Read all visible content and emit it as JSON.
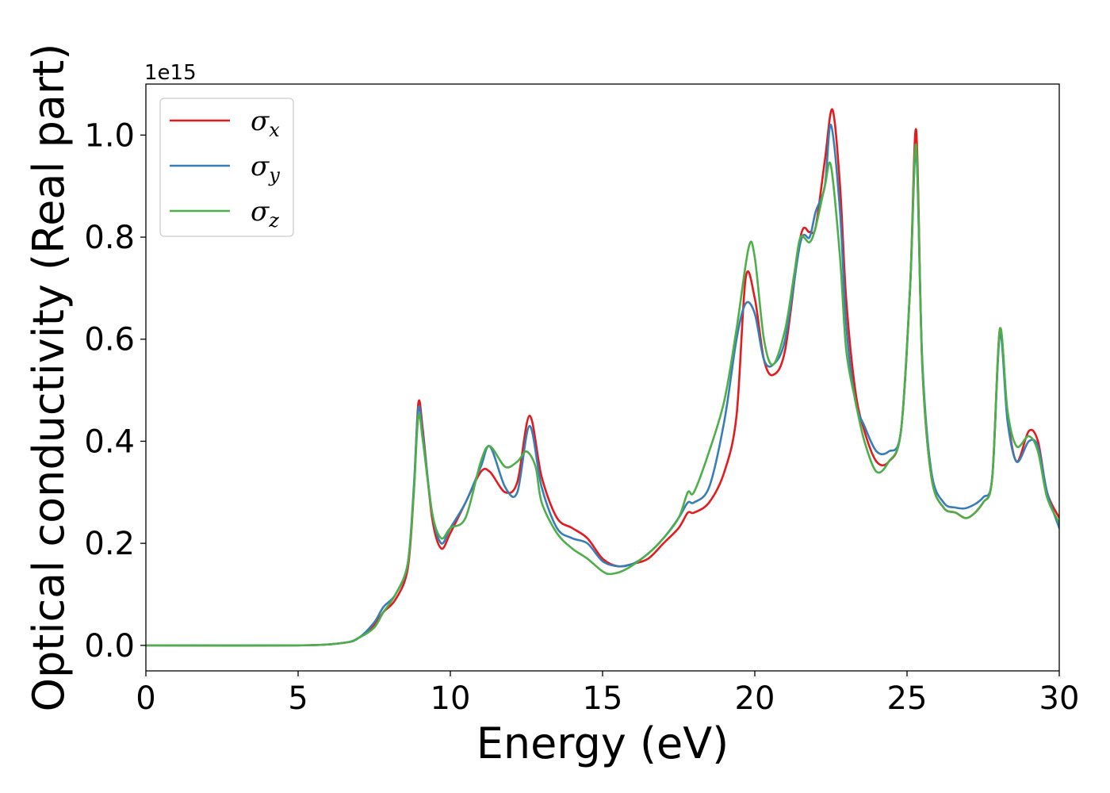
{
  "chart_data": {
    "type": "line",
    "title": "",
    "xlabel": "Energy (eV)",
    "ylabel": "Optical conductivity (Real part)",
    "y_offset_text": "1e15",
    "xlim": [
      0,
      30
    ],
    "ylim": [
      -0.05,
      1.1
    ],
    "xticks": [
      0,
      5,
      10,
      15,
      20,
      25,
      30
    ],
    "xtick_labels": [
      "0",
      "5",
      "10",
      "15",
      "20",
      "25",
      "30"
    ],
    "yticks": [
      0.0,
      0.2,
      0.4,
      0.6,
      0.8,
      1.0
    ],
    "ytick_labels": [
      "0.0",
      "0.2",
      "0.4",
      "0.6",
      "0.8",
      "1.0"
    ],
    "grid": false,
    "legend_position": "upper-left",
    "series": [
      {
        "name": "σx",
        "symbol": "σ",
        "subscript": "x",
        "color": "#e41a1c",
        "x": [
          0,
          5,
          6.5,
          7.0,
          7.5,
          7.8,
          8.2,
          8.6,
          8.8,
          8.95,
          9.1,
          9.4,
          9.7,
          10.0,
          10.5,
          11.0,
          11.3,
          11.8,
          12.2,
          12.6,
          13.0,
          13.5,
          14.0,
          14.5,
          15.0,
          15.5,
          16.0,
          16.5,
          17.0,
          17.5,
          17.8,
          18.0,
          18.5,
          19.0,
          19.4,
          19.7,
          20.0,
          20.3,
          20.6,
          21.0,
          21.5,
          21.8,
          22.0,
          22.3,
          22.55,
          22.8,
          23.0,
          23.3,
          23.6,
          24.0,
          24.4,
          24.8,
          25.1,
          25.3,
          25.5,
          25.8,
          26.2,
          26.6,
          27.0,
          27.5,
          27.8,
          28.05,
          28.3,
          28.6,
          29.0,
          29.3,
          29.6,
          30.0
        ],
        "y": [
          0.0,
          0.0,
          0.005,
          0.015,
          0.04,
          0.065,
          0.09,
          0.15,
          0.3,
          0.475,
          0.42,
          0.25,
          0.19,
          0.22,
          0.28,
          0.34,
          0.34,
          0.3,
          0.32,
          0.45,
          0.33,
          0.25,
          0.23,
          0.21,
          0.17,
          0.155,
          0.16,
          0.17,
          0.2,
          0.23,
          0.26,
          0.26,
          0.28,
          0.34,
          0.45,
          0.72,
          0.68,
          0.56,
          0.53,
          0.58,
          0.8,
          0.81,
          0.82,
          0.95,
          1.05,
          0.9,
          0.68,
          0.5,
          0.42,
          0.36,
          0.36,
          0.42,
          0.7,
          1.01,
          0.55,
          0.33,
          0.27,
          0.26,
          0.25,
          0.28,
          0.33,
          0.62,
          0.45,
          0.36,
          0.42,
          0.4,
          0.3,
          0.25
        ]
      },
      {
        "name": "σy",
        "symbol": "σ",
        "subscript": "y",
        "color": "#377eb8",
        "x": [
          0,
          5,
          6.5,
          7.0,
          7.5,
          7.8,
          8.2,
          8.6,
          8.8,
          8.95,
          9.1,
          9.4,
          9.7,
          10.0,
          10.5,
          11.0,
          11.3,
          11.8,
          12.2,
          12.6,
          13.0,
          13.5,
          14.0,
          14.5,
          15.0,
          15.5,
          16.0,
          16.5,
          17.0,
          17.5,
          17.8,
          18.0,
          18.5,
          19.0,
          19.4,
          19.7,
          20.0,
          20.3,
          20.6,
          21.0,
          21.5,
          21.8,
          22.0,
          22.3,
          22.5,
          22.8,
          23.0,
          23.3,
          23.6,
          24.0,
          24.4,
          24.8,
          25.1,
          25.3,
          25.5,
          25.8,
          26.2,
          26.6,
          27.0,
          27.5,
          27.8,
          28.05,
          28.3,
          28.6,
          29.0,
          29.3,
          29.6,
          30.0
        ],
        "y": [
          0.0,
          0.0,
          0.005,
          0.015,
          0.045,
          0.075,
          0.1,
          0.16,
          0.31,
          0.465,
          0.41,
          0.26,
          0.2,
          0.23,
          0.28,
          0.35,
          0.39,
          0.31,
          0.3,
          0.43,
          0.31,
          0.23,
          0.21,
          0.2,
          0.165,
          0.155,
          0.16,
          0.18,
          0.21,
          0.25,
          0.28,
          0.28,
          0.31,
          0.44,
          0.6,
          0.67,
          0.65,
          0.56,
          0.55,
          0.6,
          0.79,
          0.8,
          0.85,
          0.9,
          1.02,
          0.85,
          0.63,
          0.48,
          0.43,
          0.38,
          0.38,
          0.42,
          0.7,
          0.97,
          0.56,
          0.34,
          0.28,
          0.27,
          0.27,
          0.29,
          0.33,
          0.61,
          0.44,
          0.36,
          0.4,
          0.39,
          0.3,
          0.23
        ]
      },
      {
        "name": "σz",
        "symbol": "σ",
        "subscript": "z",
        "color": "#4daf4a",
        "x": [
          0,
          5,
          6.5,
          7.0,
          7.5,
          7.8,
          8.2,
          8.6,
          8.8,
          8.95,
          9.1,
          9.4,
          9.7,
          10.0,
          10.5,
          11.0,
          11.3,
          11.8,
          12.2,
          12.5,
          12.8,
          13.0,
          13.5,
          14.0,
          14.5,
          15.0,
          15.3,
          15.8,
          16.5,
          17.0,
          17.5,
          17.8,
          18.0,
          18.5,
          19.0,
          19.4,
          19.8,
          20.0,
          20.3,
          20.6,
          21.0,
          21.3,
          21.5,
          21.8,
          22.0,
          22.3,
          22.5,
          22.8,
          23.0,
          23.3,
          23.6,
          24.0,
          24.4,
          24.8,
          25.1,
          25.3,
          25.5,
          25.8,
          26.2,
          26.6,
          27.0,
          27.5,
          27.8,
          28.05,
          28.3,
          28.6,
          29.0,
          29.3,
          29.6,
          30.0
        ],
        "y": [
          0.0,
          0.0,
          0.005,
          0.015,
          0.035,
          0.065,
          0.1,
          0.16,
          0.3,
          0.45,
          0.4,
          0.26,
          0.21,
          0.23,
          0.25,
          0.36,
          0.39,
          0.35,
          0.36,
          0.38,
          0.35,
          0.28,
          0.22,
          0.19,
          0.17,
          0.145,
          0.14,
          0.15,
          0.18,
          0.21,
          0.25,
          0.3,
          0.3,
          0.38,
          0.48,
          0.62,
          0.78,
          0.76,
          0.6,
          0.55,
          0.62,
          0.73,
          0.8,
          0.79,
          0.82,
          0.9,
          0.94,
          0.76,
          0.58,
          0.48,
          0.4,
          0.34,
          0.36,
          0.42,
          0.7,
          0.98,
          0.55,
          0.33,
          0.27,
          0.26,
          0.25,
          0.28,
          0.33,
          0.62,
          0.46,
          0.39,
          0.41,
          0.38,
          0.29,
          0.24
        ]
      }
    ]
  }
}
